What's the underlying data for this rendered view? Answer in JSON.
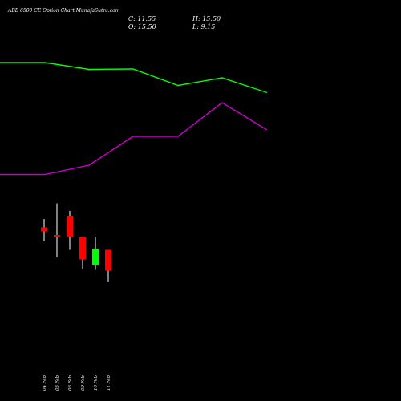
{
  "header": {
    "title": "ABB 6500  CE Option  Chart MunafaSutra.com",
    "close": "C: 11.55",
    "open": "O: 15.50",
    "high": "H: 15.50",
    "low": "L: 9.15"
  },
  "colors": {
    "background": "#000000",
    "upper_line": "#00ff00",
    "lower_line": "#cc00cc",
    "bear_candle": "#ff0000",
    "bull_candle": "#00ff00",
    "wick": "#ffffff"
  },
  "chart_data": {
    "type": "candlestick",
    "categories": [
      "04 Feb",
      "05 Feb",
      "06 Feb",
      "09 Feb",
      "10 Feb",
      "11 Feb"
    ],
    "candles": [
      {
        "open": 46.5,
        "high": 57.0,
        "low": 29.0,
        "close": 41.5,
        "direction": "down"
      },
      {
        "open": 37.0,
        "high": 76.5,
        "low": 9.0,
        "close": 35.0,
        "direction": "down"
      },
      {
        "open": 61.0,
        "high": 67.0,
        "low": 18.5,
        "close": 34.5,
        "direction": "down"
      },
      {
        "open": 34.5,
        "high": 34.5,
        "low": -5.5,
        "close": 6.5,
        "direction": "down"
      },
      {
        "open": -0.5,
        "high": 35.0,
        "low": -6.5,
        "close": 19.5,
        "direction": "up"
      },
      {
        "open": 18.5,
        "high": 18.5,
        "low": -21.5,
        "close": -7.5,
        "direction": "down"
      }
    ],
    "series": [
      {
        "color": "#00ff00",
        "x": [
          0,
          56,
          111,
          166,
          222,
          277,
          333
        ],
        "values": [
          252.0,
          252.0,
          243.5,
          244.0,
          223.5,
          233.0,
          214.5
        ]
      },
      {
        "color": "#cc00cc",
        "x": [
          0,
          56,
          111,
          166,
          222,
          277,
          333
        ],
        "values": [
          112.5,
          112.5,
          124.0,
          160.0,
          160.0,
          202.0,
          168.0
        ]
      }
    ],
    "ylim": [
      -150,
      290
    ],
    "xlim": [
      0,
      500
    ]
  }
}
